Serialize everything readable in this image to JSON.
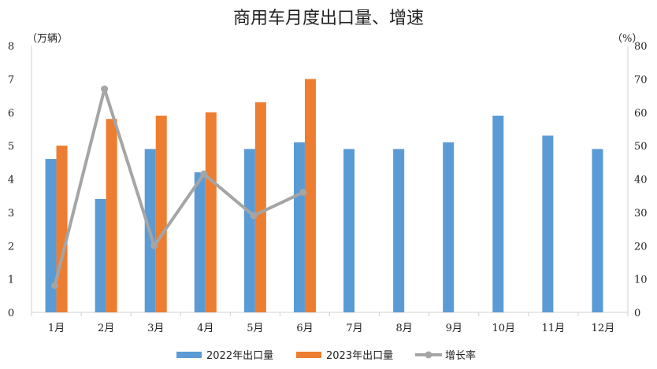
{
  "chart_data": {
    "type": "bar",
    "title": "商用车月度出口量、增速",
    "left_unit": "（万辆）",
    "right_unit": "（%）",
    "categories": [
      "1月",
      "2月",
      "3月",
      "4月",
      "5月",
      "6月",
      "7月",
      "8月",
      "9月",
      "10月",
      "11月",
      "12月"
    ],
    "ylim": [
      0,
      8
    ],
    "y_ticks": [
      "0",
      "1",
      "2",
      "3",
      "4",
      "5",
      "6",
      "7",
      "8"
    ],
    "y2lim": [
      0,
      80
    ],
    "y2_ticks": [
      "0",
      "10",
      "20",
      "30",
      "40",
      "50",
      "60",
      "70",
      "80"
    ],
    "grid": false,
    "legend_position": "bottom",
    "series": [
      {
        "name": "2022年出口量",
        "kind": "bar",
        "color": "#5B9BD5",
        "values": [
          4.6,
          3.4,
          4.9,
          4.2,
          4.9,
          5.1,
          4.9,
          4.9,
          5.1,
          5.9,
          5.3,
          4.9
        ]
      },
      {
        "name": "2023年出口量",
        "kind": "bar",
        "color": "#ED7D31",
        "values": [
          5.0,
          5.8,
          5.9,
          6.0,
          6.3,
          7.0,
          null,
          null,
          null,
          null,
          null,
          null
        ]
      },
      {
        "name": "增长率",
        "kind": "line",
        "axis": "right",
        "color": "#A5A5A5",
        "values": [
          8,
          67,
          20,
          41.5,
          29,
          36,
          null,
          null,
          null,
          null,
          null,
          null
        ]
      }
    ]
  }
}
